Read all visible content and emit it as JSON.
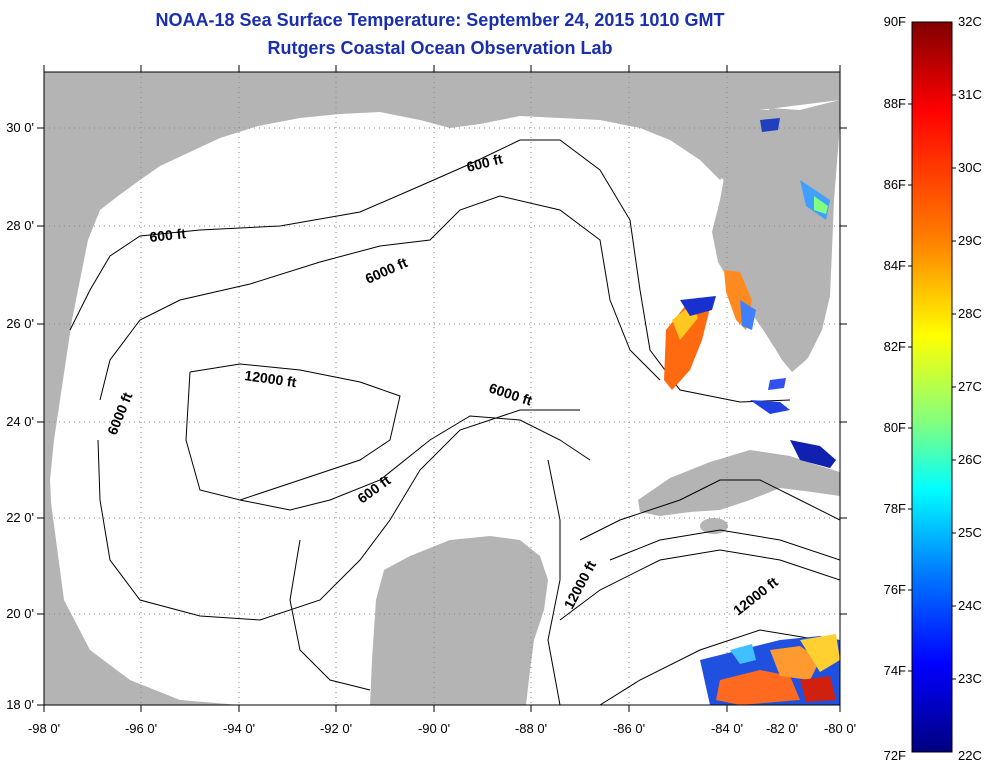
{
  "header": {
    "title": "NOAA-18 Sea Surface Temperature:  September 24, 2015 1010 GMT",
    "subtitle": "Rutgers Coastal Ocean Observation Lab"
  },
  "map": {
    "lon_labels": [
      "-98 0'",
      "-96 0'",
      "-94 0'",
      "-92 0'",
      "-90 0'",
      "-88 0'",
      "-86 0'",
      "-84 0'",
      "-82 0'",
      "-80 0'"
    ],
    "lat_labels": [
      "30 0'",
      "28 0'",
      "26 0'",
      "24 0'",
      "22 0'",
      "20 0'",
      "18 0'"
    ],
    "contour_labels": [
      "600 ft",
      "600 ft",
      "6000 ft",
      "12000 ft",
      "6000 ft",
      "6000 ft",
      "600 ft",
      "12000 ft",
      "12000 ft"
    ],
    "colors": {
      "land": "#b4b4b4",
      "ocean": "#ffffff",
      "contour": "#000000",
      "grid": "#888888"
    }
  },
  "colorbar": {
    "f_labels": [
      "90F",
      "88F",
      "86F",
      "84F",
      "82F",
      "80F",
      "78F",
      "76F",
      "74F",
      "72F"
    ],
    "c_labels": [
      "32C",
      "31C",
      "30C",
      "29C",
      "28C",
      "27C",
      "26C",
      "25C",
      "24C",
      "23C",
      "22C"
    ],
    "colors": [
      "#800000",
      "#ff0000",
      "#ff8000",
      "#ffff00",
      "#80ff80",
      "#00ffff",
      "#0080ff",
      "#0000ff",
      "#000080"
    ]
  }
}
